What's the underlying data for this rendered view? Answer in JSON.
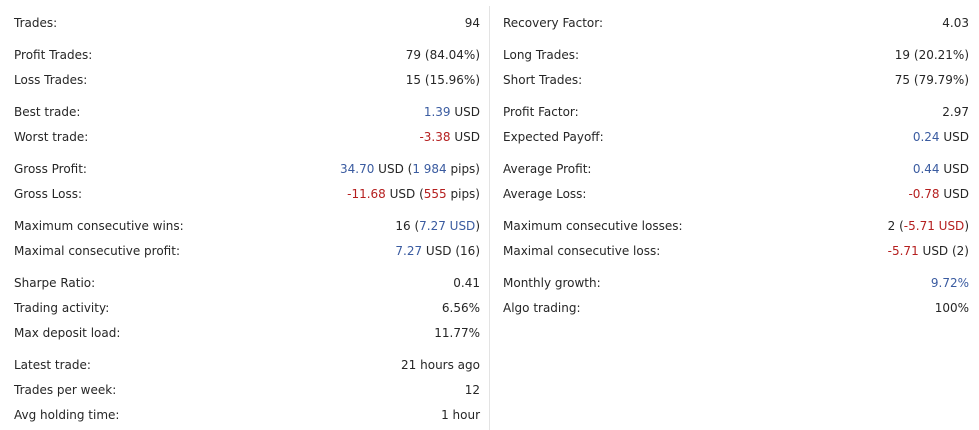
{
  "left": {
    "trades": {
      "label": "Trades:",
      "value": "94"
    },
    "profit_trades": {
      "label": "Profit Trades:",
      "value": "79 (84.04%)"
    },
    "loss_trades": {
      "label": "Loss Trades:",
      "value": "15 (15.96%)"
    },
    "best_trade": {
      "label": "Best trade:",
      "value_num": "1.39",
      "value_unit": " USD"
    },
    "worst_trade": {
      "label": "Worst trade:",
      "value_num": "-3.38",
      "value_unit": " USD"
    },
    "gross_profit": {
      "label": "Gross Profit:",
      "amount": "34.70",
      "unit": " USD (",
      "pips": "1 984",
      "tail": " pips)"
    },
    "gross_loss": {
      "label": "Gross Loss:",
      "amount": "-11.68",
      "unit": " USD (",
      "pips": "555",
      "tail": " pips)"
    },
    "max_consec_wins": {
      "label": "Maximum consecutive wins:",
      "count": "16",
      "open": " (",
      "amount": "7.27 USD",
      "close": ")"
    },
    "max_consec_profit": {
      "label": "Maximal consecutive profit:",
      "amount": "7.27",
      "rest": " USD (16)"
    },
    "sharpe_ratio": {
      "label": "Sharpe Ratio:",
      "value": "0.41"
    },
    "trading_activity": {
      "label": "Trading activity:",
      "value": "6.56%"
    },
    "max_deposit_load": {
      "label": "Max deposit load:",
      "value": "11.77%"
    },
    "latest_trade": {
      "label": "Latest trade:",
      "value": "21 hours ago"
    },
    "trades_per_week": {
      "label": "Trades per week:",
      "value": "12"
    },
    "avg_holding_time": {
      "label": "Avg holding time:",
      "value": "1 hour"
    }
  },
  "right": {
    "recovery_factor": {
      "label": "Recovery Factor:",
      "value": "4.03"
    },
    "long_trades": {
      "label": "Long Trades:",
      "value": "19 (20.21%)"
    },
    "short_trades": {
      "label": "Short Trades:",
      "value": "75 (79.79%)"
    },
    "profit_factor": {
      "label": "Profit Factor:",
      "value": "2.97"
    },
    "expected_payoff": {
      "label": "Expected Payoff:",
      "value_num": "0.24",
      "value_unit": " USD"
    },
    "average_profit": {
      "label": "Average Profit:",
      "value_num": "0.44",
      "value_unit": " USD"
    },
    "average_loss": {
      "label": "Average Loss:",
      "value_num": "-0.78",
      "value_unit": " USD"
    },
    "max_consec_losses": {
      "label": "Maximum consecutive losses:",
      "count": "2",
      "open": " (",
      "amount": "-5.71 USD",
      "close": ")"
    },
    "max_consec_loss": {
      "label": "Maximal consecutive loss:",
      "amount": "-5.71",
      "rest": " USD (2)"
    },
    "monthly_growth": {
      "label": "Monthly growth:",
      "value": "9.72%"
    },
    "algo_trading": {
      "label": "Algo trading:",
      "value": "100%"
    }
  },
  "colors": {
    "text": "#262626",
    "positive": "#3a5ba0",
    "negative": "#b51f1f",
    "divider": "#e3e3e3"
  }
}
